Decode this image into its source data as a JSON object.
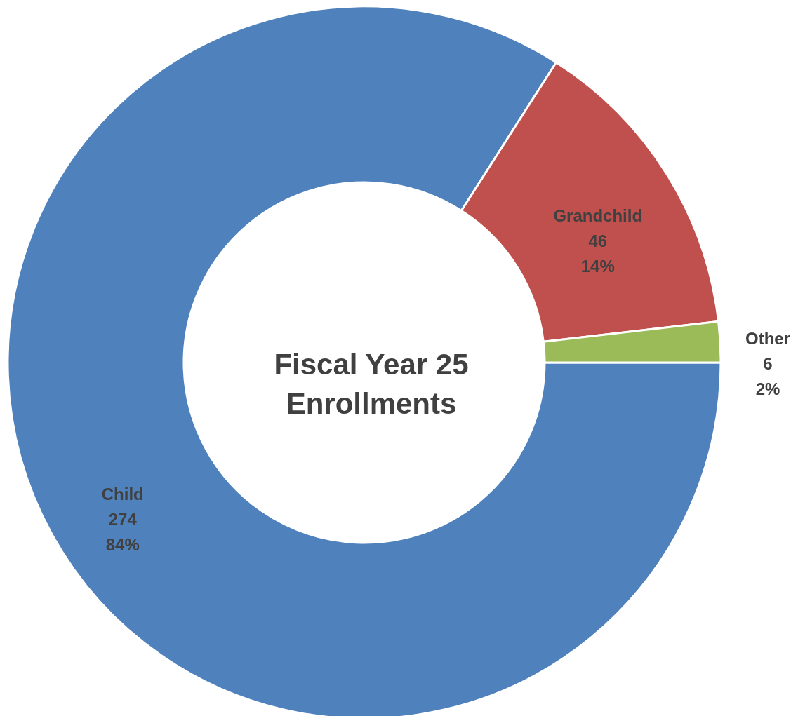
{
  "chart_data": {
    "type": "donut",
    "title": "Fiscal Year 25\nEnrollments",
    "categories": [
      "Child",
      "Grandchild",
      "Other"
    ],
    "values": [
      274,
      46,
      6
    ],
    "value_labels": [
      "274\n84%",
      "46\n14%",
      "6\n2%"
    ],
    "colors": [
      "#4f81bd",
      "#c0504d",
      "#9bbb59"
    ]
  }
}
